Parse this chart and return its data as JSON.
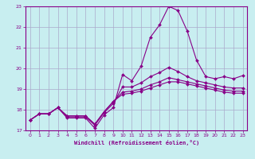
{
  "xlabel": "Windchill (Refroidissement éolien,°C)",
  "background_color": "#c8eef0",
  "grid_color": "#aaaacc",
  "line_color": "#880088",
  "xlim": [
    -0.5,
    23.5
  ],
  "ylim": [
    17.0,
    23.0
  ],
  "yticks": [
    17,
    18,
    19,
    20,
    21,
    22,
    23
  ],
  "xticks": [
    0,
    1,
    2,
    3,
    4,
    5,
    6,
    7,
    8,
    9,
    10,
    11,
    12,
    13,
    14,
    15,
    16,
    17,
    18,
    19,
    20,
    21,
    22,
    23
  ],
  "series": [
    [
      17.5,
      17.8,
      17.8,
      18.1,
      17.6,
      17.6,
      17.6,
      17.1,
      17.75,
      18.1,
      19.7,
      19.4,
      20.1,
      21.5,
      22.1,
      23.0,
      22.8,
      21.8,
      20.4,
      19.6,
      19.5,
      19.6,
      19.5,
      19.65
    ],
    [
      17.5,
      17.8,
      17.8,
      18.1,
      17.65,
      17.65,
      17.65,
      17.25,
      17.85,
      18.3,
      19.1,
      19.1,
      19.3,
      19.6,
      19.8,
      20.05,
      19.85,
      19.6,
      19.4,
      19.3,
      19.2,
      19.1,
      19.05,
      19.05
    ],
    [
      17.5,
      17.8,
      17.8,
      18.1,
      17.7,
      17.7,
      17.7,
      17.3,
      17.9,
      18.4,
      18.85,
      18.9,
      19.0,
      19.2,
      19.35,
      19.55,
      19.45,
      19.35,
      19.25,
      19.15,
      19.05,
      18.95,
      18.9,
      18.9
    ],
    [
      17.5,
      17.8,
      17.8,
      18.1,
      17.7,
      17.7,
      17.7,
      17.3,
      17.9,
      18.4,
      18.75,
      18.8,
      18.9,
      19.05,
      19.2,
      19.35,
      19.35,
      19.25,
      19.15,
      19.05,
      18.95,
      18.85,
      18.8,
      18.8
    ]
  ]
}
